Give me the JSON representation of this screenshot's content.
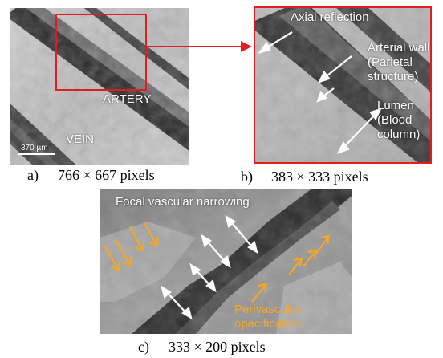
{
  "panel_a": {
    "caption_letter": "a)",
    "caption_size": "766 × 667 pixels",
    "label_artery": "ARTERY",
    "label_vein": "VEIN",
    "scale_bar": "370 µm"
  },
  "panel_b": {
    "caption_letter": "b)",
    "caption_size": "383 × 333 pixels",
    "label_axial": "Axial reflection",
    "label_wall_1": "Arterial wall",
    "label_wall_2": "(Parietal",
    "label_wall_3": "structure)",
    "label_lumen_1": "Lumen",
    "label_lumen_2": "(Blood",
    "label_lumen_3": "column)"
  },
  "panel_c": {
    "caption_letter": "c)",
    "caption_size": "333 × 200 pixels",
    "label_narrowing": "Focal vascular narrowing",
    "label_perivascular_1": "Perivascular",
    "label_perivascular_2": "opacification"
  },
  "colors": {
    "zoom_box": "#e31b23",
    "annotation_orange": "#f5a623",
    "annotation_white": "#ffffff"
  }
}
